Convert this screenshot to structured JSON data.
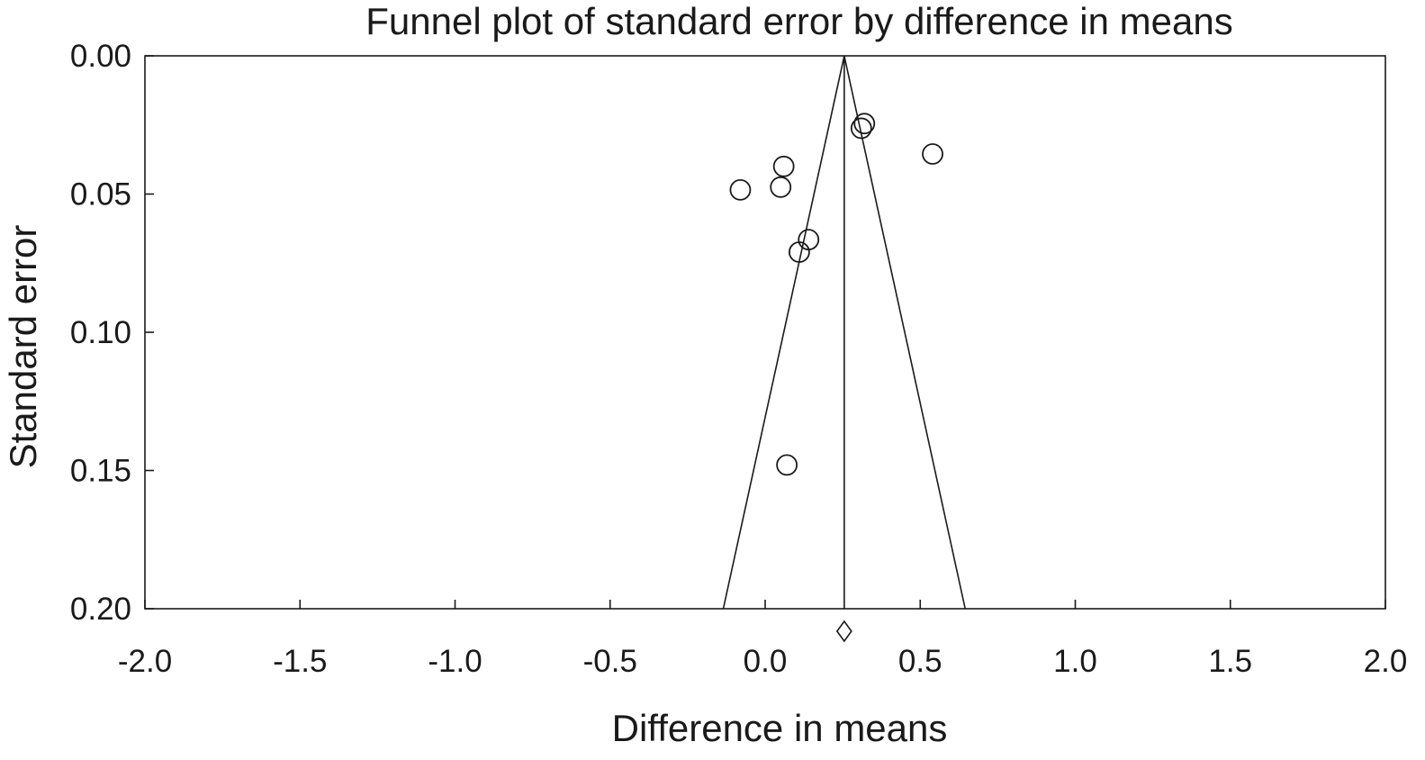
{
  "chart_data": {
    "type": "scatter",
    "title": "Funnel plot of standard error by difference in means",
    "xlabel": "Difference in means",
    "ylabel": "Standard error",
    "xlim": [
      -2.0,
      2.0
    ],
    "ylim": [
      0.0,
      0.2
    ],
    "y_inverted": true,
    "grid": false,
    "x_ticks": [
      "-2.0",
      "-1.5",
      "-1.0",
      "-0.5",
      "0.0",
      "0.5",
      "1.0",
      "1.5",
      "2.0"
    ],
    "y_ticks": [
      "0.00",
      "0.05",
      "0.10",
      "0.15",
      "0.20"
    ],
    "x_tick_values": [
      -2.0,
      -1.5,
      -1.0,
      -0.5,
      0.0,
      0.5,
      1.0,
      1.5,
      2.0
    ],
    "y_tick_values": [
      0.0,
      0.05,
      0.1,
      0.15,
      0.2
    ],
    "points": [
      {
        "x": 0.32,
        "y": 0.0245
      },
      {
        "x": 0.31,
        "y": 0.0262
      },
      {
        "x": 0.54,
        "y": 0.0355
      },
      {
        "x": 0.06,
        "y": 0.04
      },
      {
        "x": 0.05,
        "y": 0.0475
      },
      {
        "x": -0.08,
        "y": 0.0485
      },
      {
        "x": 0.14,
        "y": 0.0665
      },
      {
        "x": 0.11,
        "y": 0.071
      },
      {
        "x": 0.07,
        "y": 0.148
      }
    ],
    "pooled_estimate": 0.255,
    "funnel_bottom": {
      "left": -0.135,
      "right": 0.645,
      "y": 0.2
    },
    "summary_diamond": {
      "x": 0.255
    }
  }
}
